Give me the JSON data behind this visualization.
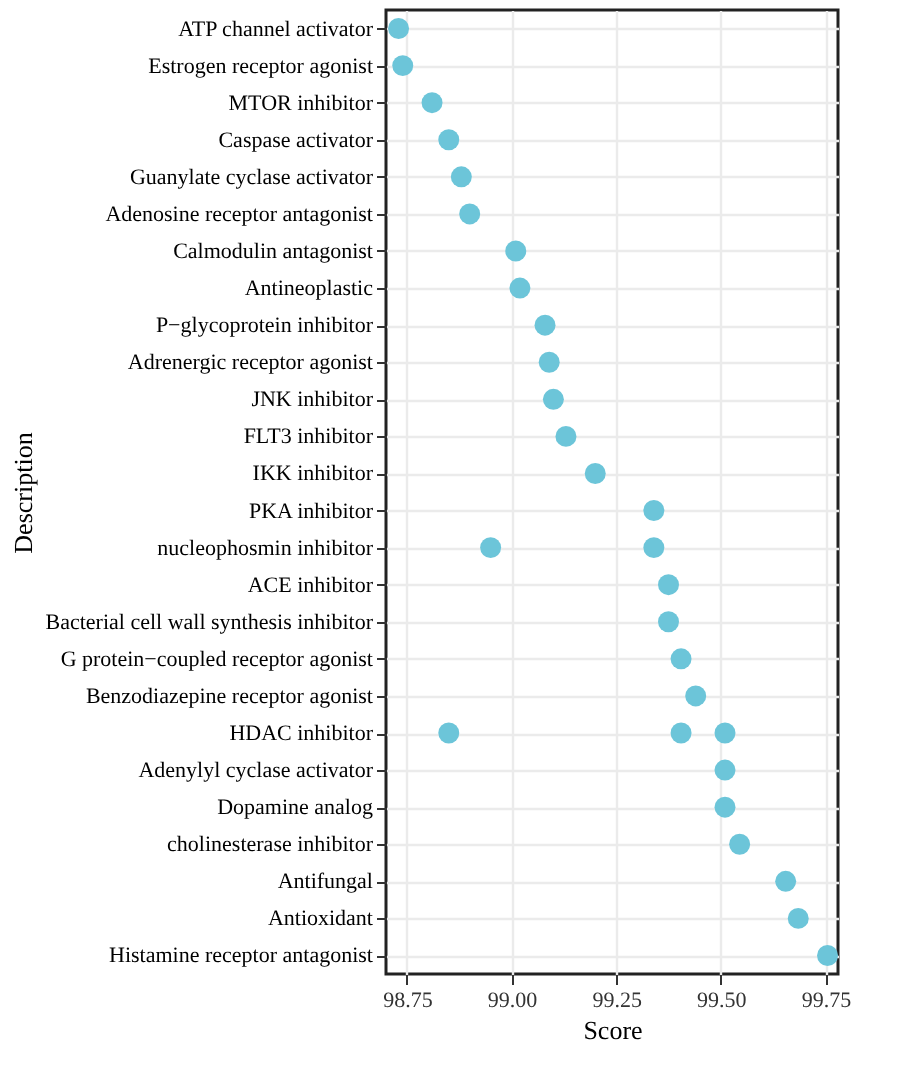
{
  "chart_data": {
    "type": "scatter",
    "orientation": "horizontal",
    "xlabel": "Score",
    "ylabel": "Description",
    "categories": [
      "ATP channel activator",
      "Estrogen receptor agonist",
      "MTOR inhibitor",
      "Caspase activator",
      "Guanylate cyclase activator",
      "Adenosine receptor antagonist",
      "Calmodulin antagonist",
      "Antineoplastic",
      "P−glycoprotein inhibitor",
      "Adrenergic receptor agonist",
      "JNK inhibitor",
      "FLT3 inhibitor",
      "IKK inhibitor",
      "PKA inhibitor",
      "nucleophosmin inhibitor",
      "ACE inhibitor",
      "Bacterial cell wall synthesis inhibitor",
      "G protein−coupled receptor agonist",
      "Benzodiazepine receptor agonist",
      "HDAC inhibitor",
      "Adenylyl cyclase activator",
      "Dopamine analog",
      "cholinesterase inhibitor",
      "Antifungal",
      "Antioxidant",
      "Histamine receptor antagonist"
    ],
    "series": [
      {
        "color": "#6cc5d9",
        "values": [
          98.73,
          98.74,
          98.81,
          98.85,
          98.88,
          98.9,
          99.01,
          99.02,
          99.08,
          99.09,
          99.1,
          99.13,
          99.2,
          99.34,
          99.34,
          99.375,
          99.375,
          99.405,
          99.44,
          99.405,
          99.51,
          99.51,
          99.545,
          99.655,
          99.685,
          99.755
        ]
      },
      {
        "color": "#6cc5d9",
        "values": [
          null,
          null,
          null,
          null,
          null,
          null,
          null,
          null,
          null,
          null,
          null,
          null,
          null,
          null,
          98.95,
          null,
          null,
          null,
          null,
          98.85,
          null,
          null,
          null,
          null,
          null,
          null
        ]
      },
      {
        "color": "#6cc5d9",
        "values": [
          null,
          null,
          null,
          null,
          null,
          null,
          null,
          null,
          null,
          null,
          null,
          null,
          null,
          null,
          null,
          null,
          null,
          null,
          null,
          99.51,
          null,
          null,
          null,
          null,
          null,
          null
        ]
      }
    ],
    "xlim": [
      98.7,
      99.78
    ],
    "xticks": [
      98.75,
      {
        "value": 99.0,
        "label": "99.00"
      },
      99.25,
      {
        "value": 99.5,
        "label": "99.50"
      },
      99.75
    ],
    "grid": true,
    "marker": "circle",
    "legend": false
  }
}
